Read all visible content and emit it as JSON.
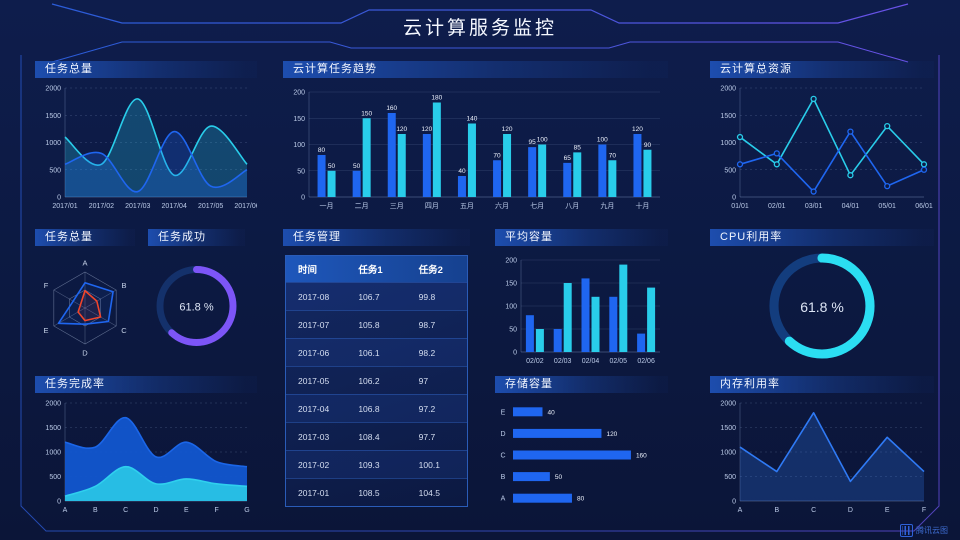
{
  "header": {
    "title": "云计算服务监控"
  },
  "brand": {
    "label": "腾讯云图"
  },
  "colors": {
    "blue": "#1f66f0",
    "cyan": "#29cdea",
    "purple": "#7d55f7",
    "red": "#f0452c",
    "accent": "#1d4fb0",
    "frame_left": "#2b5cd8",
    "frame_right": "#6a52e8"
  },
  "chart_data": [
    {
      "id": "task_total_line",
      "type": "line",
      "title": "任务总量",
      "smooth": true,
      "markers": false,
      "area": true,
      "grid": "dashed",
      "x": [
        "2017/01",
        "2017/02",
        "2017/03",
        "2017/04",
        "2017/05",
        "2017/06"
      ],
      "ylim": [
        0,
        2000
      ],
      "yticks": [
        0,
        500,
        1000,
        1500,
        2000
      ],
      "series": [
        {
          "name": "cyan-series",
          "color": "#29cdea",
          "values": [
            1100,
            600,
            1800,
            400,
            1300,
            600
          ]
        },
        {
          "name": "blue-series",
          "color": "#1f66f0",
          "values": [
            600,
            800,
            100,
            1200,
            200,
            500
          ]
        }
      ]
    },
    {
      "id": "task_trend_bar",
      "type": "bar",
      "title": "云计算任务趋势",
      "grid": "solid",
      "value_labels": true,
      "categories": [
        "一月",
        "二月",
        "三月",
        "四月",
        "五月",
        "六月",
        "七月",
        "八月",
        "九月",
        "十月"
      ],
      "ylim": [
        0,
        200
      ],
      "yticks": [
        0,
        50,
        100,
        150,
        200
      ],
      "series": [
        {
          "name": "任务1",
          "color": "#1f66f0",
          "values": [
            80,
            50,
            160,
            120,
            40,
            70,
            95,
            65,
            100,
            120
          ]
        },
        {
          "name": "任务2",
          "color": "#29cdea",
          "values": [
            50,
            150,
            120,
            180,
            140,
            120,
            100,
            85,
            70,
            90
          ]
        }
      ]
    },
    {
      "id": "cloud_resource_line",
      "type": "line",
      "title": "云计算总资源",
      "smooth": false,
      "markers": true,
      "area": false,
      "grid": "dashed",
      "x": [
        "01/01",
        "02/01",
        "03/01",
        "04/01",
        "05/01",
        "06/01"
      ],
      "ylim": [
        0,
        2000
      ],
      "yticks": [
        0,
        500,
        1000,
        1500,
        2000
      ],
      "series": [
        {
          "name": "cyan-series",
          "color": "#29cdea",
          "values": [
            1100,
            600,
            1800,
            400,
            1300,
            600
          ]
        },
        {
          "name": "blue-series",
          "color": "#1f66f0",
          "values": [
            600,
            800,
            100,
            1200,
            200,
            500
          ]
        }
      ]
    },
    {
      "id": "task_radar",
      "type": "radar",
      "title": "任务总量",
      "axes": [
        "A",
        "B",
        "C",
        "D",
        "E",
        "F"
      ],
      "max": 100,
      "series": [
        {
          "name": "blue-polygon",
          "color": "#1f66f0",
          "values": [
            70,
            90,
            75,
            45,
            85,
            38
          ]
        },
        {
          "name": "red-polygon",
          "color": "#f0452c",
          "values": [
            48,
            38,
            50,
            35,
            22,
            15
          ]
        }
      ]
    },
    {
      "id": "task_success_donut",
      "type": "donut",
      "title": "任务成功",
      "value": 61.8,
      "label": "61.8 %",
      "color": "#7d55f7",
      "track": "#14316b"
    },
    {
      "id": "task_table",
      "type": "table",
      "title": "任务管理",
      "headers": [
        "时间",
        "任务1",
        "任务2"
      ],
      "rows": [
        [
          "2017-08",
          "106.7",
          "99.8"
        ],
        [
          "2017-07",
          "105.8",
          "98.7"
        ],
        [
          "2017-06",
          "106.1",
          "98.2"
        ],
        [
          "2017-05",
          "106.2",
          "97"
        ],
        [
          "2017-04",
          "106.8",
          "97.2"
        ],
        [
          "2017-03",
          "108.4",
          "97.7"
        ],
        [
          "2017-02",
          "109.3",
          "100.1"
        ],
        [
          "2017-01",
          "108.5",
          "104.5"
        ]
      ]
    },
    {
      "id": "avg_capacity_bar",
      "type": "bar",
      "title": "平均容量",
      "grid": "solid",
      "value_labels": false,
      "categories": [
        "02/02",
        "02/03",
        "02/04",
        "02/05",
        "02/06"
      ],
      "ylim": [
        0,
        200
      ],
      "yticks": [
        0,
        50,
        100,
        150,
        200
      ],
      "series": [
        {
          "name": "blue-series",
          "color": "#1f66f0",
          "values": [
            80,
            50,
            160,
            120,
            40
          ]
        },
        {
          "name": "cyan-series",
          "color": "#29cdea",
          "values": [
            50,
            150,
            120,
            190,
            140
          ]
        }
      ]
    },
    {
      "id": "cpu_donut",
      "type": "donut",
      "title": "CPU利用率",
      "value": 61.8,
      "label": "61.8 %",
      "color": "#2bdef2",
      "track": "#133d7e"
    },
    {
      "id": "completion_area",
      "type": "area",
      "title": "任务完成率",
      "smooth": true,
      "markers": false,
      "grid": "dashed",
      "x": [
        "A",
        "B",
        "C",
        "D",
        "E",
        "F",
        "G"
      ],
      "ylim": [
        0,
        2000
      ],
      "yticks": [
        0,
        500,
        1000,
        1500,
        2000
      ],
      "series": [
        {
          "name": "blue-area",
          "color": "#1b66e8",
          "fill": "#1256cf",
          "values": [
            1200,
            1100,
            1700,
            900,
            1200,
            800,
            700
          ]
        },
        {
          "name": "cyan-area",
          "color": "#2fd0ee",
          "fill": "#29c3e6",
          "values": [
            100,
            300,
            700,
            350,
            450,
            350,
            300
          ]
        }
      ]
    },
    {
      "id": "storage_hbar",
      "type": "hbar",
      "title": "存储容量",
      "value_labels": true,
      "color": "#1f66f0",
      "max": 175,
      "categories": [
        "E",
        "D",
        "C",
        "B",
        "A"
      ],
      "values": [
        40,
        120,
        160,
        50,
        80
      ]
    },
    {
      "id": "memory_line",
      "type": "line",
      "title": "内存利用率",
      "smooth": false,
      "markers": false,
      "area": true,
      "grid": "dashed",
      "x": [
        "A",
        "B",
        "C",
        "D",
        "E",
        "F"
      ],
      "ylim": [
        0,
        2000
      ],
      "yticks": [
        0,
        500,
        1000,
        1500,
        2000
      ],
      "series": [
        {
          "name": "blue-series",
          "color": "#2f7af5",
          "values": [
            1100,
            600,
            1800,
            400,
            1300,
            600
          ]
        }
      ]
    }
  ]
}
